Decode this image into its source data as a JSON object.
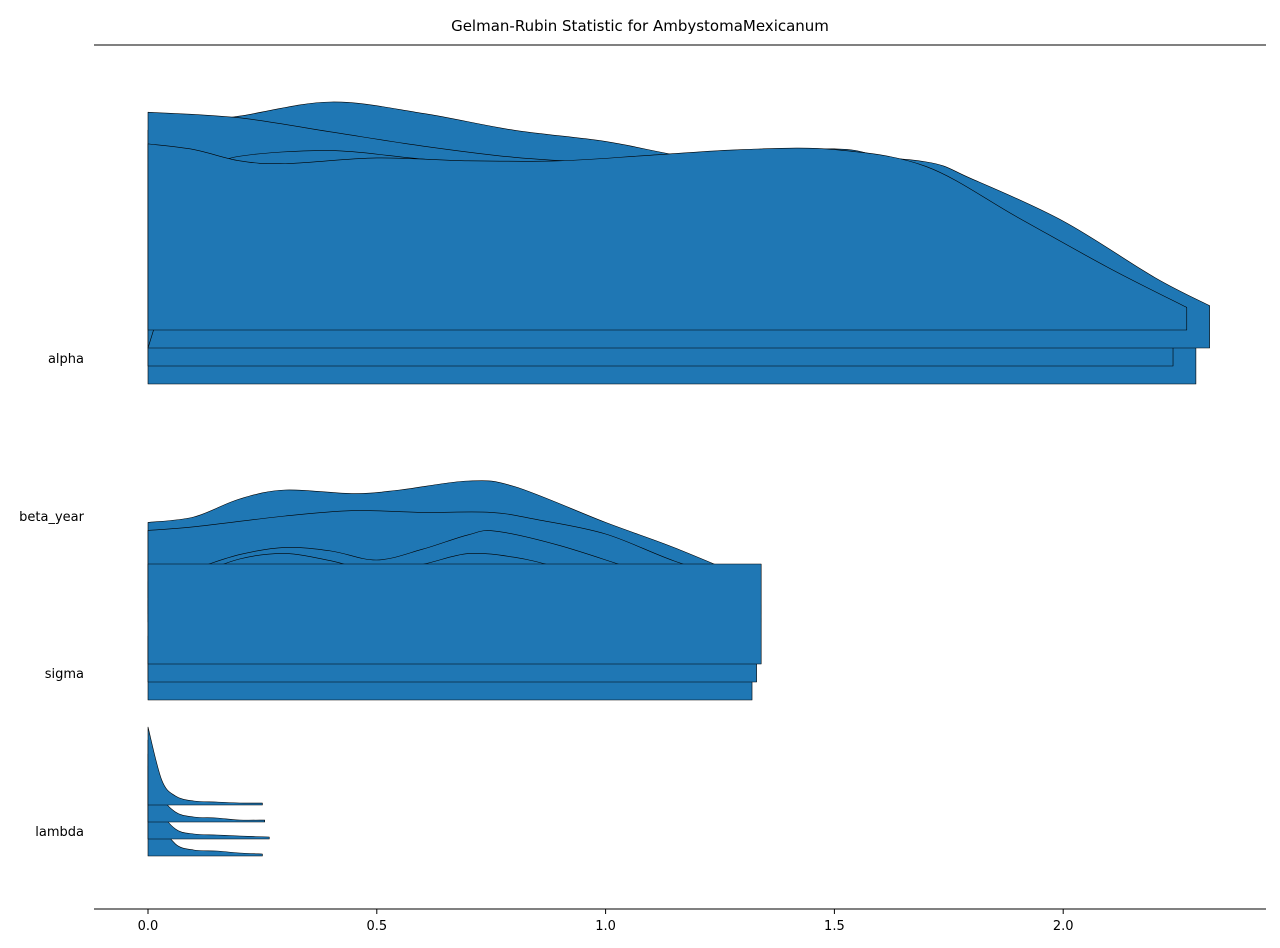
{
  "chart_data": {
    "type": "ridgeline",
    "title": "Gelman-Rubin Statistic for AmbystomaMexicanum",
    "xlabel": "",
    "ylabel": "",
    "xlim": [
      -0.117,
      2.44
    ],
    "x_ticks": [
      "0.0",
      "0.5",
      "1.0",
      "1.5",
      "2.0"
    ],
    "x_tick_values": [
      0.0,
      0.5,
      1.0,
      1.5,
      2.0
    ],
    "grid": false,
    "fill_color": "#1f77b4",
    "edge_color": "#000000",
    "parameters": [
      {
        "name": "alpha",
        "chains": [
          {
            "xmax": 2.29,
            "density": [
              [
                0.0,
                0.9
              ],
              [
                0.2,
                0.95
              ],
              [
                0.4,
                1.0
              ],
              [
                0.6,
                0.96
              ],
              [
                0.8,
                0.9
              ],
              [
                1.0,
                0.86
              ],
              [
                1.2,
                0.8
              ],
              [
                1.4,
                0.78
              ],
              [
                1.6,
                0.76
              ],
              [
                1.8,
                0.65
              ],
              [
                2.0,
                0.45
              ],
              [
                2.2,
                0.28
              ],
              [
                2.29,
                0.22
              ]
            ]
          },
          {
            "xmax": 2.24,
            "density": [
              [
                0.0,
                0.9
              ],
              [
                0.2,
                0.88
              ],
              [
                0.4,
                0.83
              ],
              [
                0.6,
                0.78
              ],
              [
                0.8,
                0.74
              ],
              [
                1.0,
                0.72
              ],
              [
                1.2,
                0.71
              ],
              [
                1.4,
                0.75
              ],
              [
                1.5,
                0.77
              ],
              [
                1.6,
                0.74
              ],
              [
                1.8,
                0.6
              ],
              [
                2.0,
                0.38
              ],
              [
                2.24,
                0.1
              ]
            ]
          },
          {
            "xmax": 2.32,
            "density": [
              [
                0.12,
                0.63
              ],
              [
                0.2,
                0.68
              ],
              [
                0.4,
                0.7
              ],
              [
                0.6,
                0.67
              ],
              [
                0.8,
                0.65
              ],
              [
                1.0,
                0.66
              ],
              [
                1.2,
                0.67
              ],
              [
                1.5,
                0.68
              ],
              [
                1.7,
                0.66
              ],
              [
                1.8,
                0.6
              ],
              [
                2.0,
                0.45
              ],
              [
                2.2,
                0.25
              ],
              [
                2.32,
                0.15
              ]
            ]
          },
          {
            "xmax": 2.27,
            "density": [
              [
                0.0,
                0.66
              ],
              [
                0.1,
                0.64
              ],
              [
                0.2,
                0.6
              ],
              [
                0.3,
                0.59
              ],
              [
                0.5,
                0.61
              ],
              [
                0.7,
                0.6
              ],
              [
                0.9,
                0.6
              ],
              [
                1.1,
                0.62
              ],
              [
                1.3,
                0.64
              ],
              [
                1.5,
                0.64
              ],
              [
                1.7,
                0.58
              ],
              [
                1.9,
                0.4
              ],
              [
                2.1,
                0.22
              ],
              [
                2.27,
                0.08
              ]
            ]
          }
        ]
      },
      {
        "name": "beta_year",
        "chains": [
          {
            "xmax": 1.32,
            "density": [
              [
                0.0,
                0.42
              ],
              [
                0.1,
                0.45
              ],
              [
                0.2,
                0.55
              ],
              [
                0.3,
                0.6
              ],
              [
                0.45,
                0.58
              ],
              [
                0.55,
                0.6
              ],
              [
                0.7,
                0.65
              ],
              [
                0.8,
                0.62
              ],
              [
                1.0,
                0.42
              ],
              [
                1.15,
                0.28
              ],
              [
                1.32,
                0.1
              ]
            ]
          },
          {
            "xmax": 1.33,
            "density": [
              [
                0.0,
                0.42
              ],
              [
                0.1,
                0.44
              ],
              [
                0.3,
                0.5
              ],
              [
                0.45,
                0.53
              ],
              [
                0.6,
                0.52
              ],
              [
                0.75,
                0.52
              ],
              [
                0.85,
                0.48
              ],
              [
                1.0,
                0.4
              ],
              [
                1.15,
                0.25
              ],
              [
                1.33,
                0.1
              ]
            ]
          },
          {
            "xmax": 1.34,
            "density": [
              [
                0.0,
                0.18
              ],
              [
                0.1,
                0.25
              ],
              [
                0.2,
                0.33
              ],
              [
                0.3,
                0.37
              ],
              [
                0.4,
                0.35
              ],
              [
                0.5,
                0.3
              ],
              [
                0.6,
                0.36
              ],
              [
                0.7,
                0.44
              ],
              [
                0.76,
                0.46
              ],
              [
                0.9,
                0.38
              ],
              [
                1.1,
                0.22
              ],
              [
                1.34,
                0.05
              ]
            ]
          },
          {
            "xmax": 1.34,
            "density": [
              [
                0.0,
                0.12
              ],
              [
                0.1,
                0.25
              ],
              [
                0.2,
                0.35
              ],
              [
                0.3,
                0.38
              ],
              [
                0.4,
                0.34
              ],
              [
                0.5,
                0.28
              ],
              [
                0.6,
                0.32
              ],
              [
                0.7,
                0.38
              ],
              [
                0.8,
                0.36
              ],
              [
                0.9,
                0.3
              ],
              [
                1.1,
                0.15
              ],
              [
                1.34,
                0.02
              ]
            ]
          }
        ]
      },
      {
        "name": "sigma",
        "chains": [
          {
            "xmax": 1.32,
            "density": [
              [
                0.0,
                0.0
              ]
            ]
          },
          {
            "xmax": 1.33,
            "density": [
              [
                0.0,
                0.0
              ]
            ]
          },
          {
            "xmax": 1.34,
            "density": [
              [
                0.0,
                0.0
              ]
            ]
          }
        ]
      },
      {
        "name": "lambda",
        "chains": [
          {
            "xmax": 0.25,
            "density": [
              [
                0.0,
                0.9
              ],
              [
                0.03,
                0.35
              ],
              [
                0.06,
                0.12
              ],
              [
                0.1,
                0.06
              ],
              [
                0.15,
                0.05
              ],
              [
                0.2,
                0.03
              ],
              [
                0.25,
                0.02
              ]
            ]
          },
          {
            "xmax": 0.265,
            "density": [
              [
                0.0,
                0.85
              ],
              [
                0.03,
                0.3
              ],
              [
                0.06,
                0.1
              ],
              [
                0.1,
                0.05
              ],
              [
                0.15,
                0.04
              ],
              [
                0.2,
                0.03
              ],
              [
                0.265,
                0.02
              ]
            ]
          },
          {
            "xmax": 0.255,
            "density": [
              [
                0.0,
                0.82
              ],
              [
                0.03,
                0.28
              ],
              [
                0.06,
                0.1
              ],
              [
                0.1,
                0.05
              ],
              [
                0.15,
                0.04
              ],
              [
                0.2,
                0.02
              ],
              [
                0.255,
                0.02
              ]
            ]
          },
          {
            "xmax": 0.25,
            "density": [
              [
                0.0,
                0.78
              ],
              [
                0.03,
                0.25
              ],
              [
                0.06,
                0.09
              ],
              [
                0.1,
                0.04
              ],
              [
                0.15,
                0.03
              ],
              [
                0.2,
                0.02
              ],
              [
                0.25,
                0.02
              ]
            ]
          }
        ]
      }
    ]
  }
}
